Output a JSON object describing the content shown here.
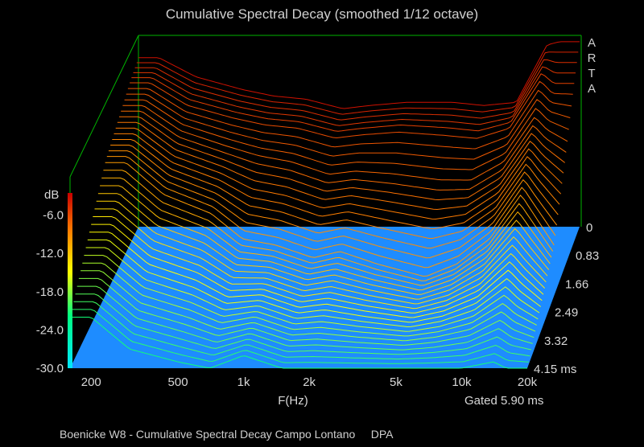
{
  "title": "Cumulative Spectral Decay (smoothed 1/12 octave)",
  "footer": "Boenicke W8 - Cumulative Spectral Decay Campo Lontano     DPA",
  "watermark": [
    "A",
    "R",
    "T",
    "A"
  ],
  "chart_data": {
    "type": "waterfall",
    "title": "Cumulative Spectral Decay (smoothed 1/12 octave)",
    "xlabel": "F(Hz)",
    "xscale": "log",
    "xlim": [
      160,
      20000
    ],
    "x_ticks": [
      {
        "value": 200,
        "label": "200"
      },
      {
        "value": 500,
        "label": "500"
      },
      {
        "value": 1000,
        "label": "1k"
      },
      {
        "value": 2000,
        "label": "2k"
      },
      {
        "value": 5000,
        "label": "5k"
      },
      {
        "value": 10000,
        "label": "10k"
      },
      {
        "value": 20000,
        "label": "20k"
      }
    ],
    "zlabel": "dB",
    "zlim": [
      -30,
      0
    ],
    "z_ticks": [
      {
        "value": -6,
        "label": "-6.0"
      },
      {
        "value": -12,
        "label": "-12.0"
      },
      {
        "value": -18,
        "label": "-18.0"
      },
      {
        "value": -24,
        "label": "-24.0"
      },
      {
        "value": -30,
        "label": "-30.0"
      }
    ],
    "time_unit": "ms",
    "time_ticks": [
      {
        "value": 0,
        "label": "0"
      },
      {
        "value": 0.83,
        "label": "0.83"
      },
      {
        "value": 1.66,
        "label": "1.66"
      },
      {
        "value": 2.49,
        "label": "2.49"
      },
      {
        "value": 3.32,
        "label": "3.32"
      },
      {
        "value": 4.15,
        "label": "4.15 ms"
      }
    ],
    "gate_label": "Gated 5.90 ms",
    "colors": {
      "floor": "#1e8cff",
      "frame": "#00b400",
      "colorbar": [
        "#00e6ff",
        "#00ff80",
        "#ffff00",
        "#ff8000",
        "#c80000"
      ]
    },
    "series": [
      {
        "time_ms": 0.0,
        "points": [
          [
            200,
            -3.5
          ],
          [
            300,
            -6.5
          ],
          [
            500,
            -8.5
          ],
          [
            700,
            -9.5
          ],
          [
            1000,
            -10
          ],
          [
            1500,
            -11.5
          ],
          [
            2000,
            -11
          ],
          [
            3000,
            -10.5
          ],
          [
            5000,
            -10.5
          ],
          [
            7000,
            -11
          ],
          [
            10000,
            -10.5
          ],
          [
            14000,
            -1.5
          ],
          [
            16000,
            -1
          ],
          [
            20000,
            -1
          ]
        ]
      },
      {
        "time_ms": 0.5,
        "points": [
          [
            200,
            -4.5
          ],
          [
            300,
            -8
          ],
          [
            500,
            -10
          ],
          [
            700,
            -11
          ],
          [
            1000,
            -11.5
          ],
          [
            1500,
            -13
          ],
          [
            2000,
            -12.5
          ],
          [
            3000,
            -12
          ],
          [
            5000,
            -12.5
          ],
          [
            7000,
            -13
          ],
          [
            10000,
            -11.5
          ],
          [
            14000,
            -4
          ],
          [
            16000,
            -6
          ],
          [
            20000,
            -6
          ]
        ]
      },
      {
        "time_ms": 1.0,
        "points": [
          [
            200,
            -6
          ],
          [
            300,
            -10
          ],
          [
            500,
            -12.5
          ],
          [
            700,
            -14
          ],
          [
            1000,
            -15
          ],
          [
            1500,
            -17
          ],
          [
            2000,
            -16.5
          ],
          [
            3000,
            -17
          ],
          [
            5000,
            -18
          ],
          [
            7000,
            -18
          ],
          [
            10000,
            -15
          ],
          [
            14000,
            -8
          ],
          [
            16000,
            -10
          ],
          [
            20000,
            -12
          ]
        ]
      },
      {
        "time_ms": 2.0,
        "points": [
          [
            200,
            -9
          ],
          [
            300,
            -14
          ],
          [
            500,
            -17
          ],
          [
            700,
            -21
          ],
          [
            1000,
            -22
          ],
          [
            1500,
            -24
          ],
          [
            2000,
            -23
          ],
          [
            3000,
            -25
          ],
          [
            5000,
            -27
          ],
          [
            7000,
            -25
          ],
          [
            10000,
            -21
          ],
          [
            14000,
            -14
          ],
          [
            16000,
            -17
          ],
          [
            20000,
            -22
          ]
        ]
      },
      {
        "time_ms": 4.15,
        "points": [
          [
            200,
            -22
          ],
          [
            300,
            -27
          ],
          [
            500,
            -29
          ],
          [
            700,
            -30
          ],
          [
            1000,
            -28
          ],
          [
            1500,
            -30
          ],
          [
            2000,
            -30
          ],
          [
            3000,
            -30
          ],
          [
            5000,
            -30
          ],
          [
            7000,
            -30
          ],
          [
            10000,
            -30
          ],
          [
            14000,
            -29
          ],
          [
            16000,
            -30
          ],
          [
            20000,
            -30
          ]
        ]
      }
    ]
  }
}
